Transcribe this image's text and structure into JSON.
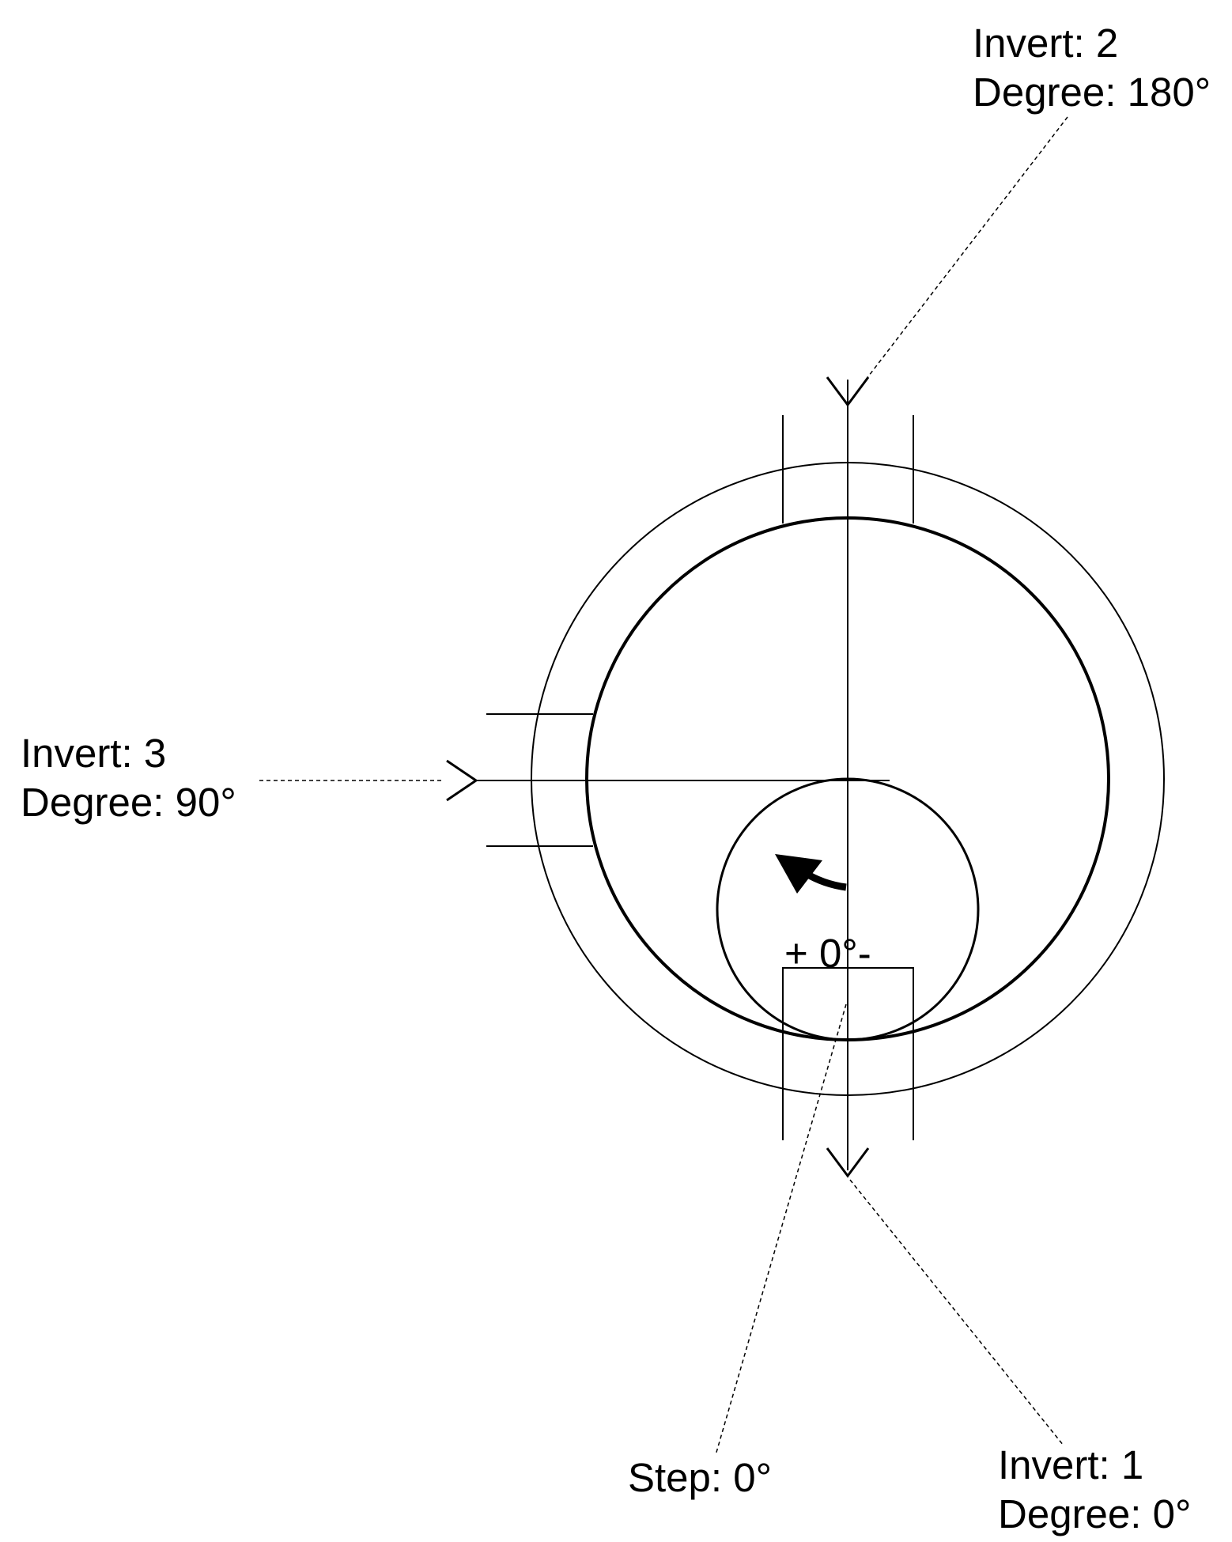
{
  "labels": {
    "invert_2": {
      "invert": "Invert: 2",
      "degree": "Degree: 180°"
    },
    "invert_3": {
      "invert": "Invert: 3",
      "degree": "Degree: 90°"
    },
    "invert_1": {
      "invert": "Invert: 1",
      "degree": "Degree: 0°"
    },
    "step": "Step: 0°",
    "offset": "+ 0°-"
  },
  "colors": {
    "stroke": "#000000",
    "background": "#ffffff"
  },
  "icons": {
    "rotation": "curved-arrow-icon",
    "inlet": "arrow-head-icon"
  }
}
